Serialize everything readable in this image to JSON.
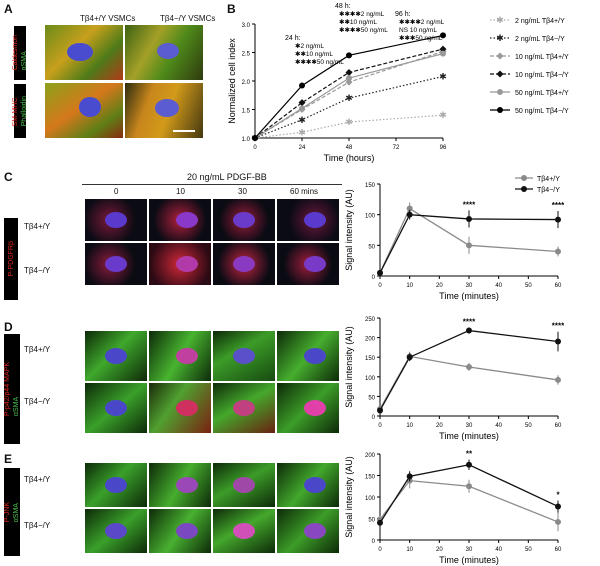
{
  "panels": {
    "A": {
      "label": "A",
      "headers": [
        "Tβ4+/Y VSMCs",
        "Tβ4−/Y VSMCs"
      ],
      "side_labels": [
        {
          "lines": [
            "Caldesmon",
            "αSMA"
          ],
          "colors": [
            "#e0271e",
            "#4ec24e"
          ]
        },
        {
          "lines": [
            "SM-MHC",
            "Phalloidin"
          ],
          "colors": [
            "#e0271e",
            "#4ec24e"
          ]
        }
      ]
    },
    "B": {
      "label": "B",
      "annotations": {
        "t24": {
          "title": "24 h:",
          "rows": [
            "✱2 ng/mL",
            "✱✱10 ng/mL",
            "✱✱✱✱50 ng/mL"
          ]
        },
        "t48": {
          "title": "48 h:",
          "rows": [
            "✱✱✱✱2 ng/mL",
            "✱✱10 ng/mL",
            "✱✱✱✱50 ng/mL"
          ]
        },
        "t96": {
          "title": "96 h:",
          "rows": [
            "✱✱✱✱2 ng/mL",
            "NS 10 ng/mL",
            "✱✱✱50 ng/mL"
          ]
        }
      }
    },
    "C": {
      "label": "C",
      "treatment": "20 ng/mL PDGF-BB",
      "timepoints": [
        "0",
        "10",
        "30",
        "60 mins"
      ],
      "rows": [
        "Tβ4+/Y",
        "Tβ4−/Y"
      ],
      "side_label": "P-PDGFRβ"
    },
    "D": {
      "label": "D",
      "rows": [
        "Tβ4+/Y",
        "Tβ4−/Y"
      ],
      "side_label_lines": [
        "P-p42/p44 MAPK",
        "αSMA"
      ]
    },
    "E": {
      "label": "E",
      "rows": [
        "Tβ4+/Y",
        "Tβ4−/Y"
      ],
      "side_label_lines": [
        "P-JNK",
        "αSMA"
      ]
    }
  },
  "colors": {
    "dark_series": "#111111",
    "grey_series": "#8a8a8a",
    "red_stain": "#e0271e",
    "green_stain": "#4ec24e",
    "blue_stain": "#3344cc"
  },
  "chart_data": [
    {
      "id": "B",
      "type": "line",
      "xlabel": "Time (hours)",
      "ylabel": "Normalized cell index",
      "xlim": [
        0,
        96
      ],
      "ylim": [
        1.0,
        3.0
      ],
      "xticks": [
        0,
        24,
        48,
        72,
        96
      ],
      "yticks": [
        1.0,
        1.5,
        2.0,
        2.5,
        3.0
      ],
      "legend_position": "right",
      "x": [
        0,
        24,
        48,
        96
      ],
      "series": [
        {
          "name": "2 ng/mL Tβ4+/Y",
          "style": "dotted",
          "color": "#aaaaaa",
          "marker": "star",
          "values": [
            1.0,
            1.1,
            1.28,
            1.4
          ]
        },
        {
          "name": "2 ng/mL Tβ4−/Y",
          "style": "dotted",
          "color": "#222222",
          "marker": "star",
          "values": [
            1.0,
            1.32,
            1.7,
            2.08
          ]
        },
        {
          "name": "10 ng/mL Tβ4+/Y",
          "style": "dashed",
          "color": "#999999",
          "marker": "diamond",
          "values": [
            1.0,
            1.5,
            1.98,
            2.52
          ]
        },
        {
          "name": "10 ng/mL Tβ4−/Y",
          "style": "dashed",
          "color": "#111111",
          "marker": "diamond",
          "values": [
            1.0,
            1.62,
            2.15,
            2.56
          ]
        },
        {
          "name": "50 ng/mL Tβ4+/Y",
          "style": "solid",
          "color": "#999999",
          "marker": "circle",
          "values": [
            1.0,
            1.52,
            2.05,
            2.48
          ]
        },
        {
          "name": "50 ng/mL Tβ4−/Y",
          "style": "solid",
          "color": "#000000",
          "marker": "circle",
          "values": [
            1.0,
            1.92,
            2.45,
            2.8
          ]
        }
      ]
    },
    {
      "id": "C",
      "type": "line",
      "xlabel": "Time (minutes)",
      "ylabel": "Signal intensity (AU)",
      "xlim": [
        0,
        60
      ],
      "ylim": [
        0,
        150
      ],
      "xticks": [
        0,
        10,
        20,
        30,
        40,
        50,
        60
      ],
      "yticks": [
        0,
        50,
        100,
        150
      ],
      "legend_position": "top-right",
      "x": [
        0,
        10,
        30,
        60
      ],
      "series": [
        {
          "name": "Tβ4+/Y",
          "color": "#8a8a8a",
          "values": [
            5,
            110,
            50,
            40
          ],
          "err": [
            0,
            10,
            14,
            8
          ]
        },
        {
          "name": "Tβ4−/Y",
          "color": "#111111",
          "values": [
            5,
            100,
            93,
            92
          ],
          "err": [
            0,
            8,
            14,
            14
          ]
        }
      ],
      "significance": [
        {
          "x": 30,
          "text": "****"
        },
        {
          "x": 60,
          "text": "****"
        }
      ]
    },
    {
      "id": "D",
      "type": "line",
      "xlabel": "Time (minutes)",
      "ylabel": "Signal intensity (AU)",
      "xlim": [
        0,
        60
      ],
      "ylim": [
        0,
        250
      ],
      "xticks": [
        0,
        10,
        20,
        30,
        40,
        50,
        60
      ],
      "yticks": [
        0,
        50,
        100,
        150,
        200,
        250
      ],
      "x": [
        0,
        10,
        30,
        60
      ],
      "series": [
        {
          "name": "Tβ4+/Y",
          "color": "#8a8a8a",
          "values": [
            18,
            152,
            125,
            92
          ],
          "err": [
            4,
            12,
            10,
            12
          ]
        },
        {
          "name": "Tβ4−/Y",
          "color": "#111111",
          "values": [
            14,
            150,
            218,
            190
          ],
          "err": [
            4,
            10,
            8,
            25
          ]
        }
      ],
      "significance": [
        {
          "x": 30,
          "text": "****"
        },
        {
          "x": 60,
          "text": "****"
        }
      ]
    },
    {
      "id": "E",
      "type": "line",
      "xlabel": "Time (minutes)",
      "ylabel": "Signal intensity (AU)",
      "xlim": [
        0,
        60
      ],
      "ylim": [
        0,
        200
      ],
      "xticks": [
        0,
        10,
        20,
        30,
        40,
        50,
        60
      ],
      "yticks": [
        0,
        50,
        100,
        150,
        200
      ],
      "x": [
        0,
        10,
        30,
        60
      ],
      "series": [
        {
          "name": "Tβ4+/Y",
          "color": "#8a8a8a",
          "values": [
            48,
            138,
            125,
            42
          ],
          "err": [
            8,
            18,
            15,
            22
          ]
        },
        {
          "name": "Tβ4−/Y",
          "color": "#111111",
          "values": [
            40,
            148,
            175,
            78
          ],
          "err": [
            6,
            12,
            12,
            14
          ]
        }
      ],
      "significance": [
        {
          "x": 30,
          "text": "**"
        },
        {
          "x": 60,
          "text": "*"
        }
      ]
    }
  ]
}
